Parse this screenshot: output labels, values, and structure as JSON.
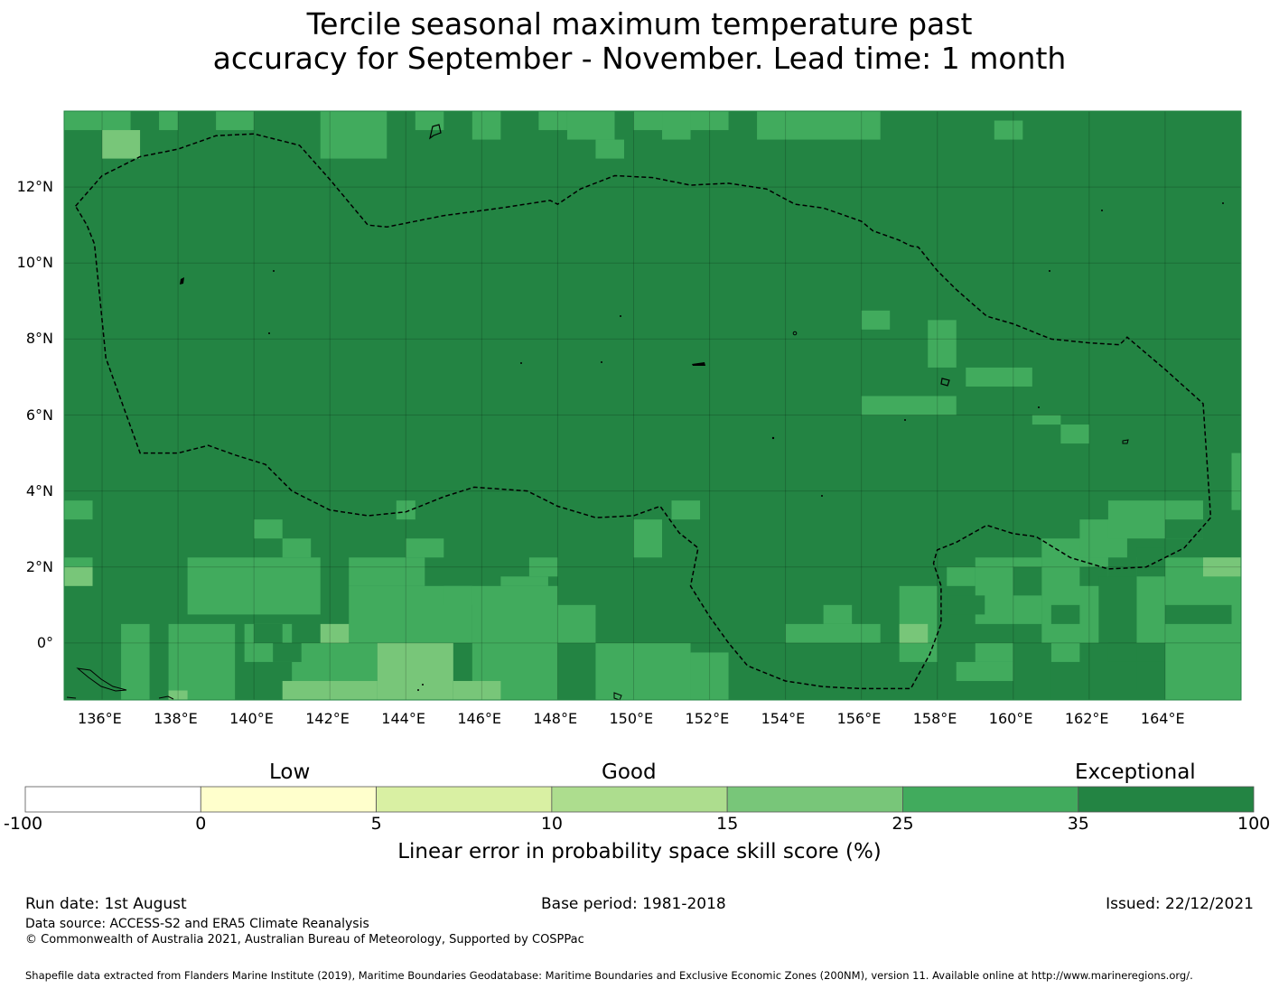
{
  "title": {
    "line1": "Tercile seasonal maximum temperature past",
    "line2": "accuracy for September - November. Lead time: 1 month"
  },
  "map": {
    "lon_labels": [
      "136°E",
      "138°E",
      "140°E",
      "142°E",
      "144°E",
      "146°E",
      "148°E",
      "150°E",
      "152°E",
      "154°E",
      "156°E",
      "158°E",
      "160°E",
      "162°E",
      "164°E"
    ],
    "lat_labels": [
      "12°N",
      "10°N",
      "8°N",
      "6°N",
      "4°N",
      "2°N",
      "0°"
    ],
    "lon_range": [
      135.0,
      166.0
    ],
    "lat_range": [
      -1.5,
      14.0
    ],
    "background_color": "#238443",
    "boundary_style": "dashed",
    "patches": [
      {
        "lon": [
          135.0,
          136.75
        ],
        "lat": [
          13.5,
          14.0
        ],
        "class": "c25"
      },
      {
        "lon": [
          137.5,
          138.0
        ],
        "lat": [
          13.5,
          14.0
        ],
        "class": "c25"
      },
      {
        "lon": [
          139.0,
          140.0
        ],
        "lat": [
          13.5,
          14.0
        ],
        "class": "c25"
      },
      {
        "lon": [
          136.0,
          137.0
        ],
        "lat": [
          12.75,
          13.5
        ],
        "class": "c15"
      },
      {
        "lon": [
          141.75,
          143.5
        ],
        "lat": [
          12.75,
          14.0
        ],
        "class": "c25"
      },
      {
        "lon": [
          144.25,
          145.0
        ],
        "lat": [
          13.5,
          14.0
        ],
        "class": "c25"
      },
      {
        "lon": [
          145.75,
          146.5
        ],
        "lat": [
          13.25,
          14.0
        ],
        "class": "c25"
      },
      {
        "lon": [
          147.5,
          148.25
        ],
        "lat": [
          13.5,
          14.0
        ],
        "class": "c25"
      },
      {
        "lon": [
          148.75,
          149.5
        ],
        "lat": [
          13.25,
          14.0
        ],
        "class": "c25"
      },
      {
        "lon": [
          150.0,
          150.75
        ],
        "lat": [
          13.5,
          14.0
        ],
        "class": "c25"
      },
      {
        "lon": [
          150.75,
          151.5
        ],
        "lat": [
          13.25,
          14.0
        ],
        "class": "c25"
      },
      {
        "lon": [
          151.5,
          152.5
        ],
        "lat": [
          13.5,
          14.0
        ],
        "class": "c25"
      },
      {
        "lon": [
          153.25,
          156.5
        ],
        "lat": [
          13.25,
          14.0
        ],
        "class": "c25"
      },
      {
        "lon": [
          148.25,
          149.5
        ],
        "lat": [
          13.25,
          14.0
        ],
        "class": "c25"
      },
      {
        "lon": [
          159.5,
          160.25
        ],
        "lat": [
          13.25,
          13.75
        ],
        "class": "c25"
      },
      {
        "lon": [
          149.0,
          149.75
        ],
        "lat": [
          12.75,
          13.25
        ],
        "class": "c25"
      },
      {
        "lon": [
          156.0,
          156.75
        ],
        "lat": [
          8.25,
          8.75
        ],
        "class": "c25"
      },
      {
        "lon": [
          157.75,
          158.5
        ],
        "lat": [
          7.25,
          8.5
        ],
        "class": "c25"
      },
      {
        "lon": [
          158.75,
          160.5
        ],
        "lat": [
          6.75,
          7.25
        ],
        "class": "c25"
      },
      {
        "lon": [
          156.0,
          158.5
        ],
        "lat": [
          6.0,
          6.5
        ],
        "class": "c25"
      },
      {
        "lon": [
          160.5,
          161.25
        ],
        "lat": [
          5.75,
          6.0
        ],
        "class": "c25"
      },
      {
        "lon": [
          161.25,
          162.0
        ],
        "lat": [
          5.25,
          5.75
        ],
        "class": "c25"
      },
      {
        "lon": [
          165.75,
          166.0
        ],
        "lat": [
          3.5,
          5.0
        ],
        "class": "c25"
      },
      {
        "lon": [
          135.0,
          135.75
        ],
        "lat": [
          3.25,
          3.75
        ],
        "class": "c25"
      },
      {
        "lon": [
          143.75,
          144.25
        ],
        "lat": [
          3.25,
          3.75
        ],
        "class": "c25"
      },
      {
        "lon": [
          151.0,
          151.75
        ],
        "lat": [
          3.25,
          3.75
        ],
        "class": "c25"
      },
      {
        "lon": [
          140.0,
          140.75
        ],
        "lat": [
          2.75,
          3.25
        ],
        "class": "c25"
      },
      {
        "lon": [
          150.0,
          150.75
        ],
        "lat": [
          2.25,
          3.25
        ],
        "class": "c25"
      },
      {
        "lon": [
          140.75,
          141.5
        ],
        "lat": [
          2.25,
          2.75
        ],
        "class": "c25"
      },
      {
        "lon": [
          135.0,
          135.75
        ],
        "lat": [
          2.0,
          2.25
        ],
        "class": "c25"
      },
      {
        "lon": [
          135.0,
          135.75
        ],
        "lat": [
          1.5,
          2.0
        ],
        "class": "c15"
      },
      {
        "lon": [
          138.25,
          141.75
        ],
        "lat": [
          0.75,
          2.25
        ],
        "class": "c25"
      },
      {
        "lon": [
          142.5,
          144.5
        ],
        "lat": [
          1.5,
          2.25
        ],
        "class": "c25"
      },
      {
        "lon": [
          144.0,
          145.0
        ],
        "lat": [
          2.25,
          2.75
        ],
        "class": "c25"
      },
      {
        "lon": [
          145.75,
          148.0
        ],
        "lat": [
          -1.5,
          1.5
        ],
        "class": "c25"
      },
      {
        "lon": [
          142.5,
          145.75
        ],
        "lat": [
          0.0,
          1.5
        ],
        "class": "c25"
      },
      {
        "lon": [
          145.0,
          145.75
        ],
        "lat": [
          1.0,
          1.5
        ],
        "class": "c25"
      },
      {
        "lon": [
          146.5,
          147.75
        ],
        "lat": [
          1.5,
          1.75
        ],
        "class": "c25"
      },
      {
        "lon": [
          147.25,
          148.0
        ],
        "lat": [
          1.75,
          2.25
        ],
        "class": "c25"
      },
      {
        "lon": [
          148.0,
          149.0
        ],
        "lat": [
          0.0,
          1.0
        ],
        "class": "c25"
      },
      {
        "lon": [
          149.0,
          151.5
        ],
        "lat": [
          -1.5,
          0.0
        ],
        "class": "c25"
      },
      {
        "lon": [
          151.5,
          152.5
        ],
        "lat": [
          -1.5,
          -0.25
        ],
        "class": "c25"
      },
      {
        "lon": [
          136.5,
          137.25
        ],
        "lat": [
          -1.5,
          0.5
        ],
        "class": "c25"
      },
      {
        "lon": [
          137.75,
          139.5
        ],
        "lat": [
          -1.5,
          0.5
        ],
        "class": "c25"
      },
      {
        "lon": [
          139.75,
          141.0
        ],
        "lat": [
          -0.5,
          0.5
        ],
        "class": "c25"
      },
      {
        "lon": [
          141.0,
          143.25
        ],
        "lat": [
          -1.5,
          0.0
        ],
        "class": "c25"
      },
      {
        "lon": [
          141.75,
          142.5
        ],
        "lat": [
          0.0,
          0.5
        ],
        "class": "c15"
      },
      {
        "lon": [
          143.25,
          145.25
        ],
        "lat": [
          -1.5,
          0.0
        ],
        "class": "c10"
      },
      {
        "lon": [
          140.75,
          143.25
        ],
        "lat": [
          -1.5,
          -1.0
        ],
        "class": "c15"
      },
      {
        "lon": [
          145.25,
          146.5
        ],
        "lat": [
          -1.5,
          -1.0
        ],
        "class": "c15"
      },
      {
        "lon": [
          137.75,
          138.25
        ],
        "lat": [
          -1.5,
          -1.25
        ],
        "class": "c15"
      },
      {
        "lon": [
          154.0,
          156.5
        ],
        "lat": [
          0.0,
          0.5
        ],
        "class": "c25"
      },
      {
        "lon": [
          155.0,
          155.75
        ],
        "lat": [
          0.5,
          1.0
        ],
        "class": "c25"
      },
      {
        "lon": [
          157.0,
          158.0
        ],
        "lat": [
          -0.5,
          1.5
        ],
        "class": "c25"
      },
      {
        "lon": [
          157.0,
          157.75
        ],
        "lat": [
          0.0,
          0.5
        ],
        "class": "c15"
      },
      {
        "lon": [
          158.25,
          159.0
        ],
        "lat": [
          1.5,
          2.0
        ],
        "class": "c25"
      },
      {
        "lon": [
          159.0,
          160.75
        ],
        "lat": [
          0.5,
          2.25
        ],
        "class": "c25"
      },
      {
        "lon": [
          158.5,
          160.0
        ],
        "lat": [
          -1.0,
          -0.5
        ],
        "class": "c25"
      },
      {
        "lon": [
          159.0,
          160.0
        ],
        "lat": [
          -0.5,
          0.0
        ],
        "class": "c25"
      },
      {
        "lon": [
          160.75,
          162.5
        ],
        "lat": [
          0.0,
          2.75
        ],
        "class": "c25"
      },
      {
        "lon": [
          161.75,
          163.0
        ],
        "lat": [
          2.25,
          3.25
        ],
        "class": "c25"
      },
      {
        "lon": [
          162.5,
          165.0
        ],
        "lat": [
          2.75,
          3.75
        ],
        "class": "c25"
      },
      {
        "lon": [
          163.25,
          166.0
        ],
        "lat": [
          0.0,
          2.25
        ],
        "class": "c25"
      },
      {
        "lon": [
          164.0,
          166.0
        ],
        "lat": [
          -1.5,
          0.0
        ],
        "class": "c25"
      },
      {
        "lon": [
          161.0,
          161.75
        ],
        "lat": [
          -0.5,
          0.0
        ],
        "class": "c25"
      },
      {
        "lon": [
          165.0,
          166.0
        ],
        "lat": [
          1.75,
          2.25
        ],
        "class": "c15"
      }
    ],
    "patches_dark": [
      {
        "lon": [
          161.75,
          162.5
        ],
        "lat": [
          1.5,
          2.0
        ]
      },
      {
        "lon": [
          163.25,
          164.0
        ],
        "lat": [
          1.75,
          2.5
        ]
      },
      {
        "lon": [
          164.0,
          165.0
        ],
        "lat": [
          2.75,
          3.25
        ]
      },
      {
        "lon": [
          164.0,
          165.75
        ],
        "lat": [
          0.5,
          1.0
        ]
      },
      {
        "lon": [
          161.0,
          161.75
        ],
        "lat": [
          0.5,
          1.0
        ]
      },
      {
        "lon": [
          163.25,
          164.0
        ],
        "lat": [
          -1.25,
          -0.5
        ]
      },
      {
        "lon": [
          162.5,
          163.25
        ],
        "lat": [
          -0.5,
          0.0
        ]
      },
      {
        "lon": [
          162.25,
          163.25
        ],
        "lat": [
          0.0,
          1.75
        ]
      },
      {
        "lon": [
          160.0,
          161.0
        ],
        "lat": [
          -1.5,
          0.0
        ]
      },
      {
        "lon": [
          160.0,
          160.75
        ],
        "lat": [
          1.25,
          2.0
        ]
      },
      {
        "lon": [
          158.25,
          159.25
        ],
        "lat": [
          0.75,
          1.25
        ]
      },
      {
        "lon": [
          140.0,
          140.75
        ],
        "lat": [
          0.0,
          0.5
        ]
      },
      {
        "lon": [
          140.5,
          141.25
        ],
        "lat": [
          -0.5,
          0.0
        ]
      }
    ],
    "eez_boundary": [
      [
        135.3,
        11.5
      ],
      [
        136.0,
        12.3
      ],
      [
        137.0,
        12.8
      ],
      [
        138.0,
        13.0
      ],
      [
        139.0,
        13.35
      ],
      [
        140.0,
        13.4
      ],
      [
        141.2,
        13.1
      ],
      [
        142.0,
        12.2
      ],
      [
        143.0,
        11.0
      ],
      [
        143.5,
        10.95
      ],
      [
        145.0,
        11.25
      ],
      [
        146.5,
        11.45
      ],
      [
        147.8,
        11.65
      ],
      [
        148.0,
        11.55
      ],
      [
        148.6,
        11.95
      ],
      [
        149.5,
        12.3
      ],
      [
        150.5,
        12.25
      ],
      [
        151.5,
        12.05
      ],
      [
        152.5,
        12.1
      ],
      [
        153.5,
        11.95
      ],
      [
        154.25,
        11.55
      ],
      [
        155.0,
        11.45
      ],
      [
        156.0,
        11.1
      ],
      [
        156.3,
        10.85
      ],
      [
        157.0,
        10.6
      ],
      [
        157.3,
        10.45
      ],
      [
        157.5,
        10.42
      ],
      [
        158.0,
        9.8
      ],
      [
        158.5,
        9.3
      ],
      [
        159.3,
        8.6
      ],
      [
        160.0,
        8.4
      ],
      [
        161.0,
        8.0
      ],
      [
        162.0,
        7.9
      ],
      [
        162.8,
        7.85
      ],
      [
        163.0,
        8.05
      ],
      [
        164.0,
        7.2
      ],
      [
        165.0,
        6.3
      ],
      [
        165.2,
        3.3
      ],
      [
        164.5,
        2.5
      ],
      [
        163.5,
        2.0
      ],
      [
        162.5,
        1.95
      ],
      [
        161.5,
        2.25
      ],
      [
        160.6,
        2.8
      ],
      [
        160.0,
        2.88
      ],
      [
        159.3,
        3.1
      ],
      [
        158.5,
        2.65
      ],
      [
        158.0,
        2.45
      ],
      [
        157.9,
        2.1
      ],
      [
        158.1,
        1.5
      ],
      [
        158.1,
        0.5
      ],
      [
        157.8,
        -0.3
      ],
      [
        157.3,
        -1.2
      ],
      [
        156.0,
        -1.2
      ],
      [
        155.0,
        -1.15
      ],
      [
        154.0,
        -1.0
      ],
      [
        153.0,
        -0.6
      ],
      [
        152.5,
        0.0
      ],
      [
        152.0,
        0.7
      ],
      [
        151.5,
        1.5
      ],
      [
        151.7,
        2.5
      ],
      [
        151.2,
        2.9
      ],
      [
        150.7,
        3.6
      ],
      [
        150.0,
        3.35
      ],
      [
        149.0,
        3.3
      ],
      [
        148.0,
        3.6
      ],
      [
        147.2,
        4.0
      ],
      [
        146.5,
        4.05
      ],
      [
        145.8,
        4.1
      ],
      [
        145.0,
        3.85
      ],
      [
        144.0,
        3.45
      ],
      [
        143.0,
        3.35
      ],
      [
        142.0,
        3.5
      ],
      [
        141.0,
        4.0
      ],
      [
        140.3,
        4.7
      ],
      [
        139.5,
        4.95
      ],
      [
        138.8,
        5.2
      ],
      [
        138.0,
        5.0
      ],
      [
        137.0,
        5.0
      ],
      [
        136.1,
        7.5
      ],
      [
        135.9,
        9.5
      ],
      [
        135.8,
        10.5
      ],
      [
        135.6,
        11.0
      ],
      [
        135.3,
        11.5
      ]
    ]
  },
  "colorbar": {
    "categories": {
      "low": "Low",
      "good": "Good",
      "exceptional": "Exceptional"
    },
    "ticks": [
      "-100",
      "0",
      "5",
      "10",
      "15",
      "25",
      "35",
      "100"
    ],
    "colors": [
      "#ffffff",
      "#ffffcc",
      "#d9f0a3",
      "#addd8e",
      "#78c679",
      "#41ab5d",
      "#238443"
    ],
    "label": "Linear error in probability space skill score (%)"
  },
  "footer": {
    "run_date": "Run date: 1st August",
    "base_period": "Base period: 1981-2018",
    "issued": "Issued: 22/12/2021",
    "data_source": "Data source: ACCESS-S2 and ERA5 Climate Reanalysis",
    "copyright": "© Commonwealth of Australia 2021, Australian Bureau of Meteorology, Supported by COSPPac",
    "shapefile": "Shapefile data extracted from Flanders Marine Institute (2019), Maritime Boundaries Geodatabase: Maritime Boundaries and Exclusive Economic Zones (200NM), version 11. Available online at http://www.marineregions.org/."
  }
}
